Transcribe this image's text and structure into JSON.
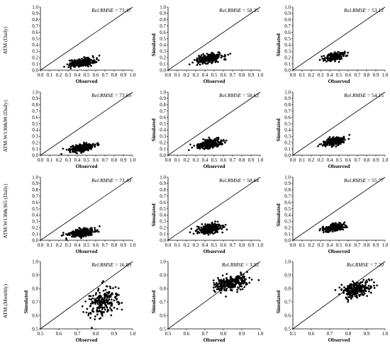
{
  "figure": {
    "row_labels": [
      "ATM (Daily)",
      "ATM-W130&90 (Daily)",
      "ATM-W130&365 (Daily)",
      "ATM (Monthly)"
    ],
    "xlabel": "Observed",
    "ylabel": "Simulated",
    "metric_label": "Rel.RMSE"
  },
  "chart_data": [
    {
      "type": "scatter",
      "row": 0,
      "col": 0,
      "xlim": [
        0,
        1
      ],
      "ylim": [
        0,
        1
      ],
      "ticks": [
        0.0,
        0.1,
        0.2,
        0.3,
        0.4,
        0.5,
        0.6,
        0.7,
        0.8,
        0.9,
        1.0
      ],
      "xlabel": "Observed",
      "ylabel": "",
      "rmse": "73.47",
      "line": "1:1",
      "x_center": 0.45,
      "x_spread": 0.07,
      "y_center": 0.12,
      "y_spread": 0.03,
      "slope": 0.4,
      "n": 260
    },
    {
      "type": "scatter",
      "row": 0,
      "col": 1,
      "xlim": [
        0,
        1
      ],
      "ylim": [
        0,
        1
      ],
      "ticks": [
        0.0,
        0.1,
        0.2,
        0.3,
        0.4,
        0.5,
        0.6,
        0.7,
        0.8,
        0.9,
        1.0
      ],
      "xlabel": "Observed",
      "ylabel": "Simulated",
      "rmse": "58.35",
      "line": "1:1",
      "x_center": 0.45,
      "x_spread": 0.07,
      "y_center": 0.19,
      "y_spread": 0.035,
      "slope": 0.45,
      "n": 260
    },
    {
      "type": "scatter",
      "row": 0,
      "col": 2,
      "xlim": [
        0,
        1
      ],
      "ylim": [
        0,
        1
      ],
      "ticks": [
        0.0,
        0.1,
        0.2,
        0.3,
        0.4,
        0.5,
        0.6,
        0.7,
        0.8,
        0.9,
        1.0
      ],
      "xlabel": "Observed",
      "ylabel": "Simulated",
      "rmse": "53.12",
      "line": "1:1",
      "x_center": 0.45,
      "x_spread": 0.055,
      "y_center": 0.22,
      "y_spread": 0.03,
      "slope": 0.45,
      "n": 220
    },
    {
      "type": "scatter",
      "row": 1,
      "col": 0,
      "xlim": [
        0,
        1
      ],
      "ylim": [
        0,
        1
      ],
      "ticks": [
        0.0,
        0.1,
        0.2,
        0.3,
        0.4,
        0.5,
        0.6,
        0.7,
        0.8,
        0.9,
        1.0
      ],
      "xlabel": "Observed",
      "ylabel": "",
      "rmse": "73.69",
      "line": "1:1",
      "x_center": 0.45,
      "x_spread": 0.07,
      "y_center": 0.12,
      "y_spread": 0.03,
      "slope": 0.4,
      "n": 260
    },
    {
      "type": "scatter",
      "row": 1,
      "col": 1,
      "xlim": [
        0,
        1
      ],
      "ylim": [
        0,
        1
      ],
      "ticks": [
        0.0,
        0.1,
        0.2,
        0.3,
        0.4,
        0.5,
        0.6,
        0.7,
        0.8,
        0.9,
        1.0
      ],
      "xlabel": "Observed",
      "ylabel": "Simulated",
      "rmse": "58.62",
      "line": "1:1",
      "x_center": 0.45,
      "x_spread": 0.07,
      "y_center": 0.18,
      "y_spread": 0.035,
      "slope": 0.45,
      "n": 260
    },
    {
      "type": "scatter",
      "row": 1,
      "col": 2,
      "xlim": [
        0,
        1
      ],
      "ylim": [
        0,
        1
      ],
      "ticks": [
        0.0,
        0.1,
        0.2,
        0.3,
        0.4,
        0.5,
        0.6,
        0.7,
        0.8,
        0.9,
        1.0
      ],
      "xlabel": "Observed",
      "ylabel": "Simulated",
      "rmse": "54.15",
      "line": "1:1",
      "x_center": 0.45,
      "x_spread": 0.055,
      "y_center": 0.22,
      "y_spread": 0.03,
      "slope": 0.45,
      "n": 220
    },
    {
      "type": "scatter",
      "row": 2,
      "col": 0,
      "xlim": [
        0,
        1
      ],
      "ylim": [
        0,
        1
      ],
      "ticks": [
        0.0,
        0.1,
        0.2,
        0.3,
        0.4,
        0.5,
        0.6,
        0.7,
        0.8,
        0.9,
        1.0
      ],
      "xlabel": "Observed",
      "ylabel": "",
      "rmse": "73.49",
      "line": "1:1",
      "x_center": 0.45,
      "x_spread": 0.07,
      "y_center": 0.12,
      "y_spread": 0.03,
      "slope": 0.4,
      "n": 260
    },
    {
      "type": "scatter",
      "row": 2,
      "col": 1,
      "xlim": [
        0,
        1
      ],
      "ylim": [
        0,
        1
      ],
      "ticks": [
        0.0,
        0.1,
        0.2,
        0.3,
        0.4,
        0.5,
        0.6,
        0.7,
        0.8,
        0.9,
        1.0
      ],
      "xlabel": "Observed",
      "ylabel": "Simulated",
      "rmse": "58.64",
      "line": "1:1",
      "x_center": 0.45,
      "x_spread": 0.07,
      "y_center": 0.18,
      "y_spread": 0.035,
      "slope": 0.45,
      "n": 260
    },
    {
      "type": "scatter",
      "row": 2,
      "col": 2,
      "xlim": [
        0,
        1
      ],
      "ylim": [
        0,
        1
      ],
      "ticks": [
        0.0,
        0.1,
        0.2,
        0.3,
        0.4,
        0.5,
        0.6,
        0.7,
        0.8,
        0.9,
        1.0
      ],
      "xlabel": "Observed",
      "ylabel": "Simulated",
      "rmse": "55.77",
      "line": "1:1",
      "x_center": 0.45,
      "x_spread": 0.055,
      "y_center": 0.2,
      "y_spread": 0.03,
      "slope": 0.45,
      "n": 220
    },
    {
      "type": "scatter",
      "row": 3,
      "col": 0,
      "xlim": [
        0.5,
        1
      ],
      "ylim": [
        0.5,
        1
      ],
      "ticks": [
        0.5,
        0.6,
        0.7,
        0.8,
        0.9,
        1.0
      ],
      "xlabel": "Observed",
      "ylabel": "Simulated",
      "rmse": "16.89",
      "line": "1:1",
      "x_center": 0.84,
      "x_spread": 0.045,
      "y_center": 0.7,
      "y_spread": 0.05,
      "slope": 0.8,
      "n": 220
    },
    {
      "type": "scatter",
      "row": 3,
      "col": 1,
      "xlim": [
        0.5,
        1
      ],
      "ylim": [
        0.5,
        1
      ],
      "ticks": [
        0.5,
        0.6,
        0.7,
        0.8,
        0.9,
        1.0
      ],
      "xlabel": "Observed",
      "ylabel": "Simulated",
      "rmse": "3.92",
      "line": "1:1",
      "x_center": 0.84,
      "x_spread": 0.045,
      "y_center": 0.84,
      "y_spread": 0.025,
      "slope": 0.55,
      "n": 260
    },
    {
      "type": "scatter",
      "row": 3,
      "col": 2,
      "xlim": [
        0.5,
        1
      ],
      "ylim": [
        0.5,
        1
      ],
      "ticks": [
        0.5,
        0.6,
        0.7,
        0.8,
        0.9,
        1.0
      ],
      "xlabel": "Observed",
      "ylabel": "Simulated",
      "rmse": "7.20",
      "line": "1:1",
      "x_center": 0.84,
      "x_spread": 0.04,
      "y_center": 0.79,
      "y_spread": 0.03,
      "slope": 0.6,
      "n": 240
    }
  ]
}
